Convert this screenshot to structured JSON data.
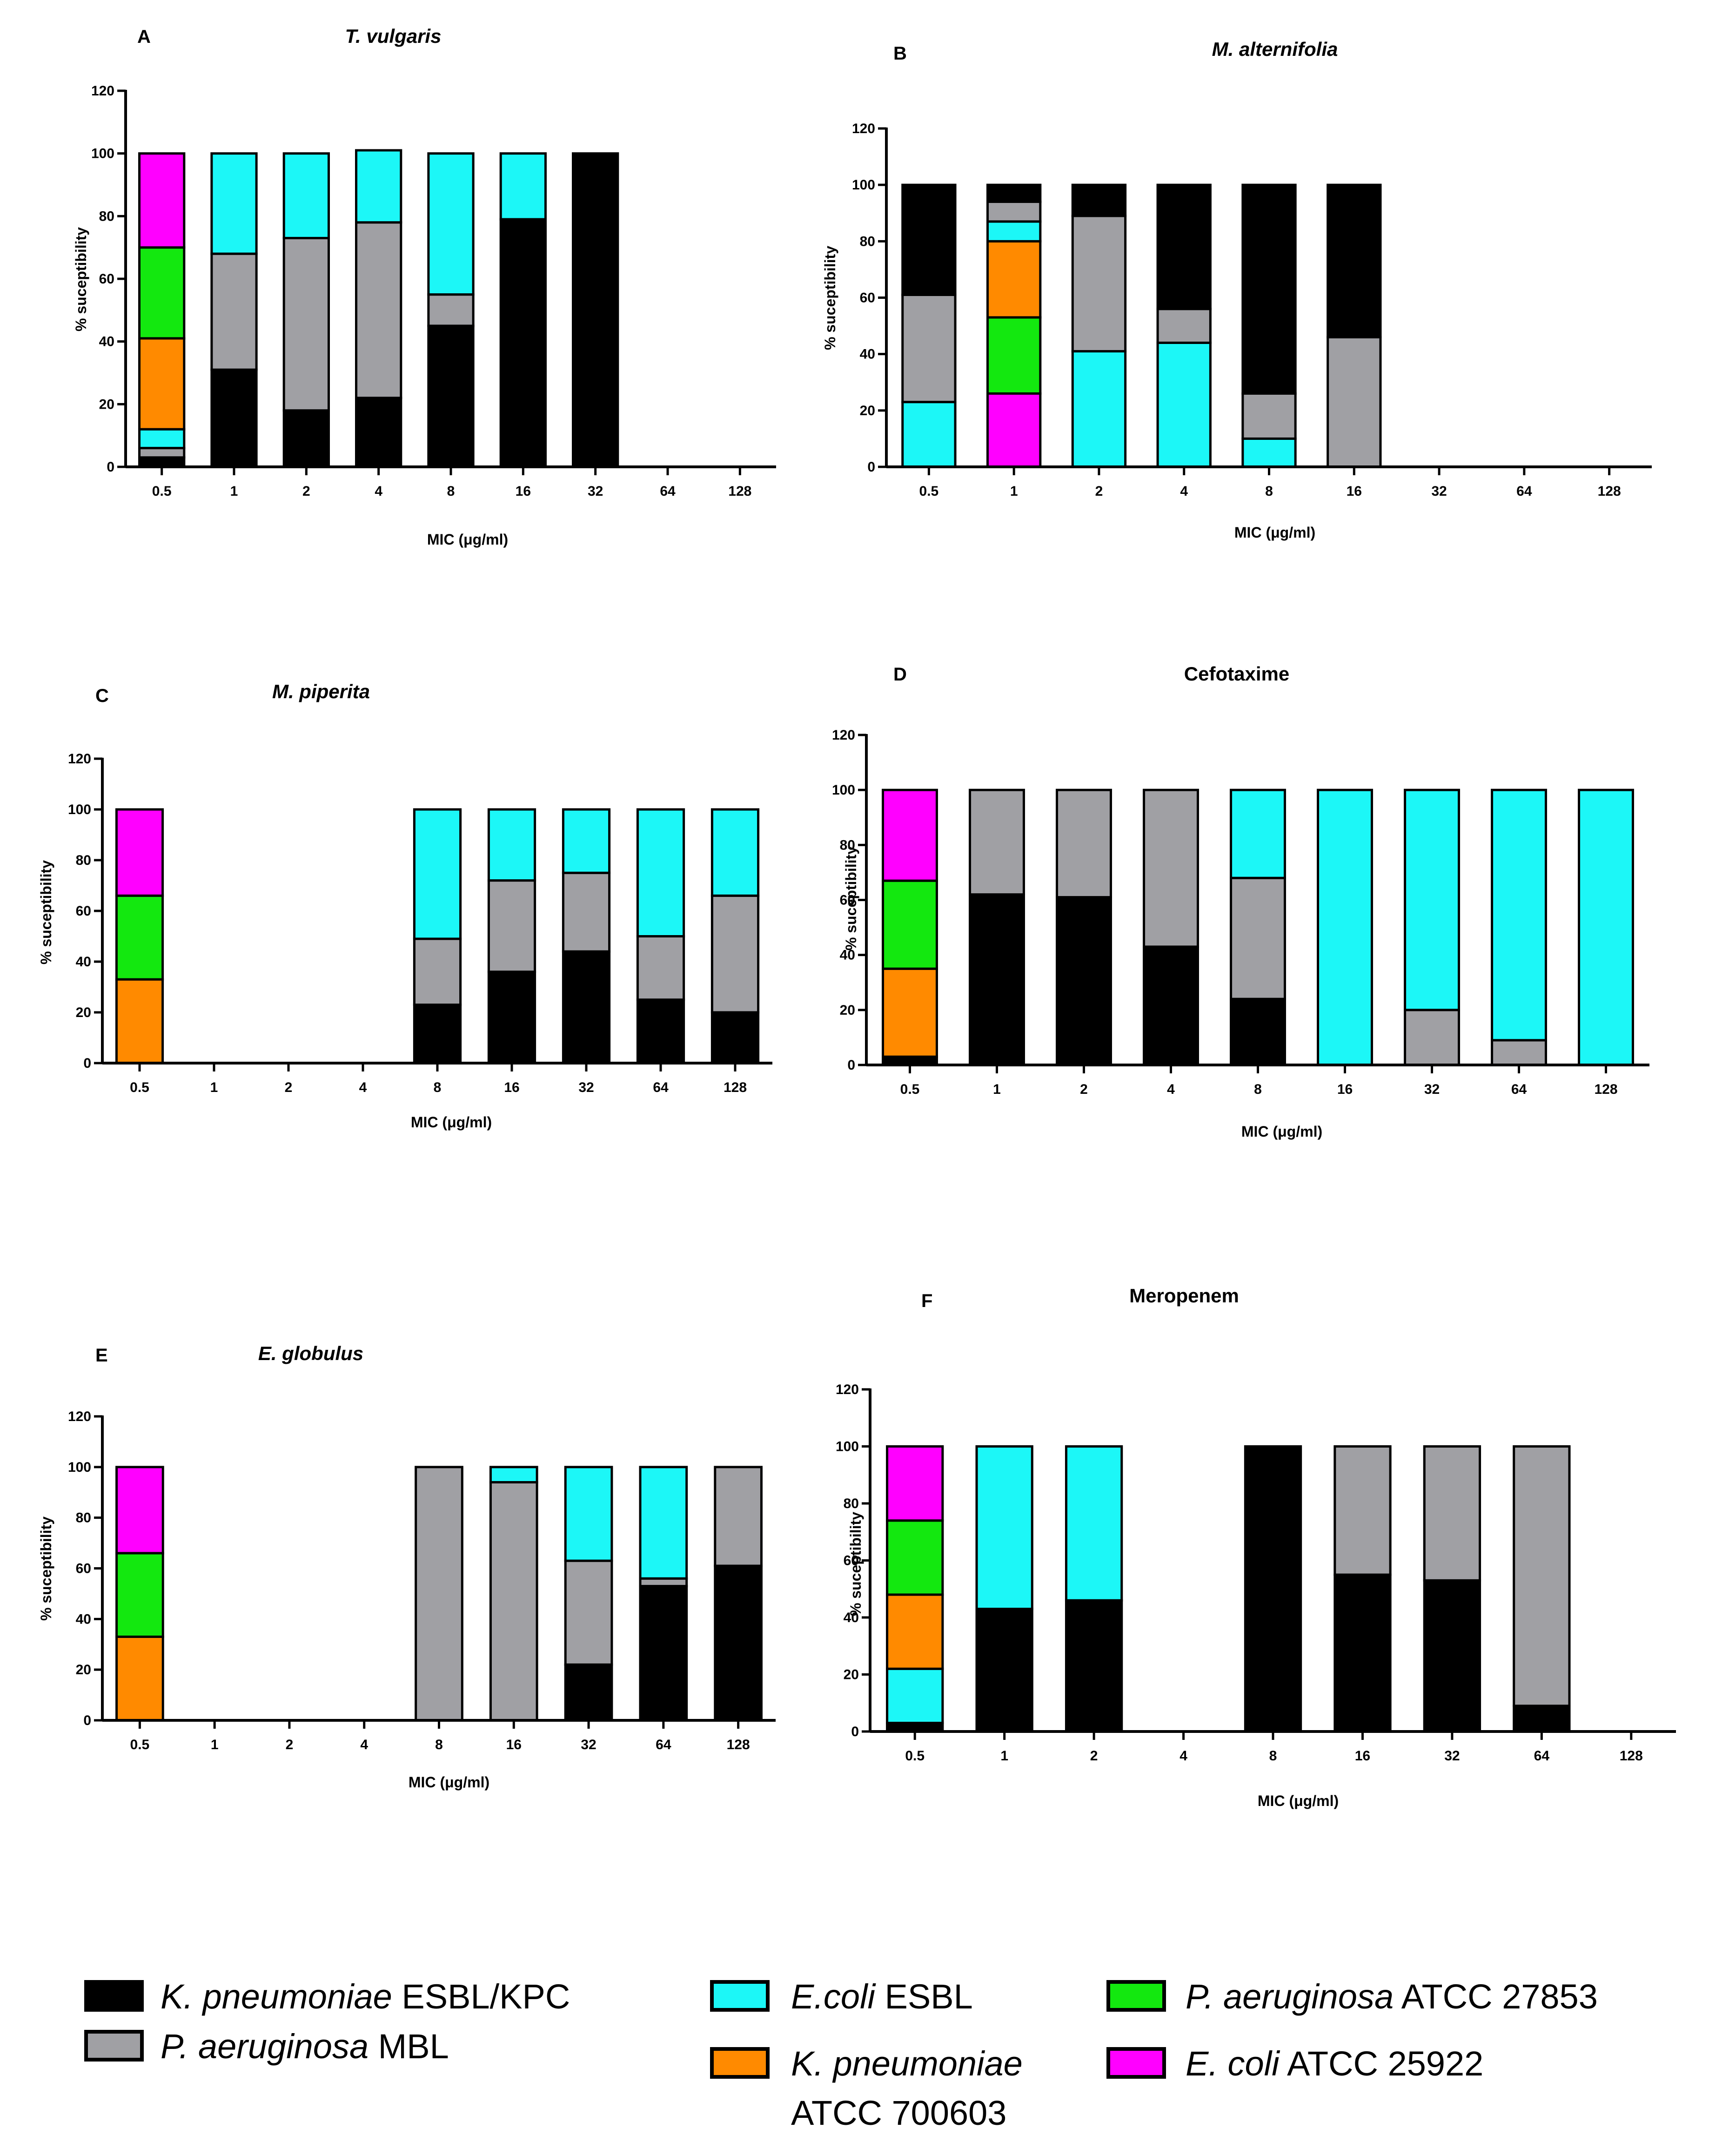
{
  "figure": {
    "colors": {
      "kp_esbl_kpc": "#000000",
      "pa_mbl": "#a0a0a4",
      "ecoli_esbl": "#1cf7f7",
      "kp_atcc": "#ff8a00",
      "pa_atcc": "#13e80f",
      "ecoli_atcc": "#ff00ff"
    },
    "legend": [
      {
        "key": "kp_esbl_kpc",
        "italic": "K. pneumoniae",
        "rest": " ESBL/KPC",
        "line2": ""
      },
      {
        "key": "pa_mbl",
        "italic": "P. aeruginosa",
        "rest": " MBL",
        "line2": ""
      },
      {
        "key": "ecoli_esbl",
        "italic": "E.coli",
        "rest": " ESBL",
        "line2": ""
      },
      {
        "key": "kp_atcc",
        "italic": "K. pneumoniae",
        "rest": "",
        "line2": "ATCC 700603"
      },
      {
        "key": "pa_atcc",
        "italic": "P. aeruginosa",
        "rest": " ATCC 27853",
        "line2": ""
      },
      {
        "key": "ecoli_atcc",
        "italic": "E. coli",
        "rest": " ATCC 25922",
        "line2": ""
      }
    ]
  },
  "chart_data": [
    {
      "panel": "A",
      "title": "T. vulgaris",
      "title_italic": true,
      "type": "bar",
      "stacked": true,
      "categories": [
        "0.5",
        "1",
        "2",
        "4",
        "8",
        "16",
        "32",
        "64",
        "128"
      ],
      "ylim": [
        0,
        120
      ],
      "yticks": [
        0,
        20,
        40,
        60,
        80,
        100,
        120
      ],
      "ylabel": "% suceptibility",
      "xlabel": "MIC (μg/ml)",
      "series": [
        {
          "key": "kp_esbl_kpc",
          "values": [
            3,
            31,
            18,
            22,
            45,
            79,
            100,
            0,
            0
          ]
        },
        {
          "key": "pa_mbl",
          "values": [
            3,
            37,
            55,
            56,
            10,
            0,
            0,
            0,
            0
          ]
        },
        {
          "key": "ecoli_esbl",
          "values": [
            6,
            32,
            27,
            23,
            45,
            21,
            0,
            0,
            0
          ]
        },
        {
          "key": "kp_atcc",
          "values": [
            29,
            0,
            0,
            0,
            0,
            0,
            0,
            0,
            0
          ]
        },
        {
          "key": "pa_atcc",
          "values": [
            29,
            0,
            0,
            0,
            0,
            0,
            0,
            0,
            0
          ]
        },
        {
          "key": "ecoli_atcc",
          "values": [
            30,
            0,
            0,
            0,
            0,
            0,
            0,
            0,
            0
          ]
        }
      ]
    },
    {
      "panel": "B",
      "title": "M. alternifolia",
      "title_italic": true,
      "type": "bar",
      "stacked": true,
      "categories": [
        "0.5",
        "1",
        "2",
        "4",
        "8",
        "16",
        "32",
        "64",
        "128"
      ],
      "ylim": [
        0,
        120
      ],
      "yticks": [
        0,
        20,
        40,
        60,
        80,
        100,
        120
      ],
      "ylabel": "% suceptibility",
      "xlabel": "MIC (μg/ml)",
      "series": [
        {
          "key": "ecoli_atcc",
          "values": [
            0,
            26,
            0,
            0,
            0,
            0,
            0,
            0,
            0
          ]
        },
        {
          "key": "pa_atcc",
          "values": [
            0,
            27,
            0,
            0,
            0,
            0,
            0,
            0,
            0
          ]
        },
        {
          "key": "kp_atcc",
          "values": [
            0,
            27,
            0,
            0,
            0,
            0,
            0,
            0,
            0
          ]
        },
        {
          "key": "ecoli_esbl",
          "values": [
            23,
            7,
            41,
            44,
            10,
            0,
            0,
            0,
            0
          ]
        },
        {
          "key": "pa_mbl",
          "values": [
            38,
            7,
            48,
            12,
            16,
            46,
            0,
            0,
            0
          ]
        },
        {
          "key": "kp_esbl_kpc",
          "values": [
            39,
            6,
            11,
            44,
            74,
            54,
            0,
            0,
            0
          ]
        }
      ]
    },
    {
      "panel": "C",
      "title": "M. piperita",
      "title_italic": true,
      "type": "bar",
      "stacked": true,
      "categories": [
        "0.5",
        "1",
        "2",
        "4",
        "8",
        "16",
        "32",
        "64",
        "128"
      ],
      "ylim": [
        0,
        120
      ],
      "yticks": [
        0,
        20,
        40,
        60,
        80,
        100,
        120
      ],
      "ylabel": "% suceptibility",
      "xlabel": "MIC (μg/ml)",
      "series": [
        {
          "key": "kp_esbl_kpc",
          "values": [
            0,
            0,
            0,
            0,
            23,
            36,
            44,
            25,
            20
          ]
        },
        {
          "key": "pa_mbl",
          "values": [
            0,
            0,
            0,
            0,
            26,
            36,
            31,
            25,
            46
          ]
        },
        {
          "key": "ecoli_esbl",
          "values": [
            0,
            0,
            0,
            0,
            51,
            28,
            25,
            50,
            34
          ]
        },
        {
          "key": "kp_atcc",
          "values": [
            33,
            0,
            0,
            0,
            0,
            0,
            0,
            0,
            0
          ]
        },
        {
          "key": "pa_atcc",
          "values": [
            33,
            0,
            0,
            0,
            0,
            0,
            0,
            0,
            0
          ]
        },
        {
          "key": "ecoli_atcc",
          "values": [
            34,
            0,
            0,
            0,
            0,
            0,
            0,
            0,
            0
          ]
        }
      ]
    },
    {
      "panel": "D",
      "title": "Cefotaxime",
      "title_italic": false,
      "type": "bar",
      "stacked": true,
      "categories": [
        "0.5",
        "1",
        "2",
        "4",
        "8",
        "16",
        "32",
        "64",
        "128"
      ],
      "ylim": [
        0,
        120
      ],
      "yticks": [
        0,
        20,
        40,
        60,
        80,
        100,
        120
      ],
      "ylabel": "% suceptibility",
      "xlabel": "MIC (μg/ml)",
      "series": [
        {
          "key": "kp_esbl_kpc",
          "values": [
            3,
            62,
            61,
            43,
            24,
            0,
            0,
            0,
            0
          ]
        },
        {
          "key": "pa_mbl",
          "values": [
            0,
            38,
            39,
            57,
            44,
            0,
            20,
            9,
            0
          ]
        },
        {
          "key": "ecoli_esbl",
          "values": [
            0,
            0,
            0,
            0,
            32,
            100,
            80,
            91,
            100
          ]
        },
        {
          "key": "kp_atcc",
          "values": [
            32,
            0,
            0,
            0,
            0,
            0,
            0,
            0,
            0
          ]
        },
        {
          "key": "pa_atcc",
          "values": [
            32,
            0,
            0,
            0,
            0,
            0,
            0,
            0,
            0
          ]
        },
        {
          "key": "ecoli_atcc",
          "values": [
            33,
            0,
            0,
            0,
            0,
            0,
            0,
            0,
            0
          ]
        }
      ]
    },
    {
      "panel": "E",
      "title": "E. globulus",
      "title_italic": true,
      "type": "bar",
      "stacked": true,
      "categories": [
        "0.5",
        "1",
        "2",
        "4",
        "8",
        "16",
        "32",
        "64",
        "128"
      ],
      "ylim": [
        0,
        120
      ],
      "yticks": [
        0,
        20,
        40,
        60,
        80,
        100,
        120
      ],
      "ylabel": "% suceptibility",
      "xlabel": "MIC (μg/ml)",
      "series": [
        {
          "key": "kp_esbl_kpc",
          "values": [
            0,
            0,
            0,
            0,
            0,
            0,
            22,
            53,
            61
          ]
        },
        {
          "key": "pa_mbl",
          "values": [
            0,
            0,
            0,
            0,
            100,
            94,
            41,
            3,
            39
          ]
        },
        {
          "key": "ecoli_esbl",
          "values": [
            0,
            0,
            0,
            0,
            0,
            6,
            37,
            44,
            0
          ]
        },
        {
          "key": "kp_atcc",
          "values": [
            33,
            0,
            0,
            0,
            0,
            0,
            0,
            0,
            0
          ]
        },
        {
          "key": "pa_atcc",
          "values": [
            33,
            0,
            0,
            0,
            0,
            0,
            0,
            0,
            0
          ]
        },
        {
          "key": "ecoli_atcc",
          "values": [
            34,
            0,
            0,
            0,
            0,
            0,
            0,
            0,
            0
          ]
        }
      ]
    },
    {
      "panel": "F",
      "title": "Meropenem",
      "title_italic": false,
      "type": "bar",
      "stacked": true,
      "categories": [
        "0.5",
        "1",
        "2",
        "4",
        "8",
        "16",
        "32",
        "64",
        "128"
      ],
      "ylim": [
        0,
        120
      ],
      "yticks": [
        0,
        20,
        40,
        60,
        80,
        100,
        120
      ],
      "ylabel": "% suceptibility",
      "xlabel": "MIC (μg/ml)",
      "series": [
        {
          "key": "kp_esbl_kpc",
          "values": [
            3,
            43,
            46,
            0,
            100,
            55,
            53,
            9,
            0
          ]
        },
        {
          "key": "pa_mbl",
          "values": [
            0,
            0,
            0,
            0,
            0,
            45,
            47,
            91,
            0
          ]
        },
        {
          "key": "ecoli_esbl",
          "values": [
            19,
            57,
            54,
            0,
            0,
            0,
            0,
            0,
            0
          ]
        },
        {
          "key": "kp_atcc",
          "values": [
            26,
            0,
            0,
            0,
            0,
            0,
            0,
            0,
            0
          ]
        },
        {
          "key": "pa_atcc",
          "values": [
            26,
            0,
            0,
            0,
            0,
            0,
            0,
            0,
            0
          ]
        },
        {
          "key": "ecoli_atcc",
          "values": [
            26,
            0,
            0,
            0,
            0,
            0,
            0,
            0,
            0
          ]
        }
      ]
    }
  ]
}
